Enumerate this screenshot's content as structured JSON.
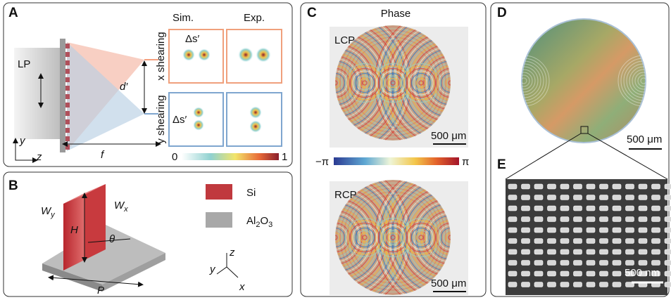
{
  "panels": {
    "a": {
      "label": "A",
      "source": "LP",
      "axis_y": "y",
      "axis_z": "z",
      "focal": "f",
      "separation": "d′",
      "columns": [
        "Sim.",
        "Exp."
      ],
      "rows": [
        "x shearing",
        "y shearing"
      ],
      "shift": "Δs′",
      "colorbar": [
        "0",
        "1"
      ]
    },
    "b": {
      "label": "B",
      "width_y": {
        "main": "W",
        "sub": "y"
      },
      "width_x": {
        "main": "W",
        "sub": "x"
      },
      "height": "H",
      "angle": "θ",
      "period": "P",
      "legend": [
        {
          "name": "Si"
        },
        {
          "name": [
            "Al",
            "2",
            "O",
            "3"
          ]
        }
      ],
      "axes": [
        "z",
        "y",
        "x"
      ]
    },
    "c": {
      "label": "C",
      "title": "Phase",
      "top": "LCP",
      "bottom": "RCP",
      "scale_bar": "500 μm",
      "colorbar": [
        "−π",
        "π"
      ]
    },
    "d": {
      "label": "D",
      "scale_bar": "500 μm"
    },
    "e": {
      "label": "E",
      "scale_bar": "500 nm"
    }
  }
}
